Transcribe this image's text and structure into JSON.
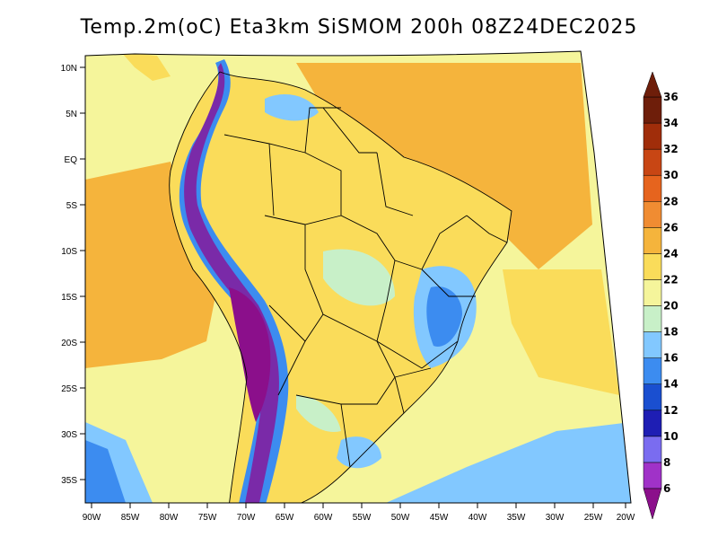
{
  "title": "Temp.2m(oC) Eta3km SiSMOM 200h 08Z24DEC2025",
  "lat_labels": [
    "10N",
    "5N",
    "EQ",
    "5S",
    "10S",
    "15S",
    "20S",
    "25S",
    "30S",
    "35S"
  ],
  "lon_labels": [
    "90W",
    "85W",
    "80W",
    "75W",
    "70W",
    "65W",
    "60W",
    "55W",
    "50W",
    "45W",
    "40W",
    "35W",
    "30W",
    "25W",
    "20W"
  ],
  "colorbar": {
    "labels": [
      "6",
      "8",
      "10",
      "12",
      "14",
      "16",
      "18",
      "20",
      "22",
      "24",
      "26",
      "28",
      "30",
      "32",
      "34",
      "36"
    ],
    "colors": [
      "#8b0f8b",
      "#a032c8",
      "#7a6cf0",
      "#1e1eb4",
      "#1a4fd0",
      "#3c8cf0",
      "#82c8ff",
      "#c8f0c8",
      "#f5f59b",
      "#fadc5a",
      "#f5b43c",
      "#f08c32",
      "#e6641e",
      "#c84614",
      "#a02d0a",
      "#6e1e0a"
    ]
  },
  "colors": {
    "ocean_warm": "#f5b43c",
    "ocean_mid": "#fadc5a",
    "ocean_cool": "#f5f59b",
    "land_warm": "#fadc5a",
    "land_cool": "#c8f0c8",
    "highland_cold": "#7a2aa8",
    "andes_blue": "#3c8cf0"
  }
}
